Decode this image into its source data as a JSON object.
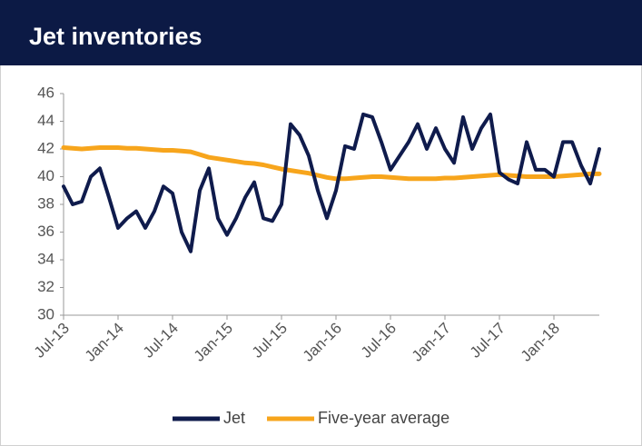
{
  "chart_data": {
    "type": "line",
    "title": "Jet inventories",
    "categories": [
      "Jul-13",
      null,
      null,
      null,
      null,
      null,
      "Jan-14",
      null,
      null,
      null,
      null,
      null,
      "Jul-14",
      null,
      null,
      null,
      null,
      null,
      "Jan-15",
      null,
      null,
      null,
      null,
      null,
      "Jul-15",
      null,
      null,
      null,
      null,
      null,
      "Jan-16",
      null,
      null,
      null,
      null,
      null,
      "Jul-16",
      null,
      null,
      null,
      null,
      null,
      "Jan-17",
      null,
      null,
      null,
      null,
      null,
      "Jul-17",
      null,
      null,
      null,
      null,
      null,
      "Jan-18",
      null,
      null,
      null,
      null,
      null
    ],
    "series": [
      {
        "name": "Jet",
        "color": "#0f1b4c",
        "values": [
          39.3,
          38,
          38.2,
          40,
          40.6,
          38.5,
          36.3,
          37,
          37.5,
          36.3,
          37.5,
          39.3,
          38.8,
          36,
          34.6,
          39,
          40.6,
          37,
          35.8,
          37,
          38.5,
          39.6,
          37,
          36.8,
          38,
          43.8,
          43,
          41.5,
          39,
          37,
          39,
          42.2,
          42,
          44.5,
          44.3,
          42.5,
          40.5,
          41.5,
          42.5,
          43.8,
          42,
          43.5,
          42,
          41,
          44.3,
          42,
          43.5,
          44.5,
          40.3,
          39.8,
          39.5,
          42.5,
          40.5,
          40.5,
          40,
          42.5,
          42.5,
          40.8,
          39.5,
          42
        ]
      },
      {
        "name": "Five-year average",
        "color": "#f7a51c",
        "values": [
          42.1,
          42.05,
          42.0,
          42.05,
          42.1,
          42.1,
          42.1,
          42.05,
          42.05,
          42.0,
          41.95,
          41.9,
          41.9,
          41.85,
          41.8,
          41.6,
          41.4,
          41.3,
          41.2,
          41.1,
          41.0,
          40.95,
          40.85,
          40.7,
          40.55,
          40.45,
          40.35,
          40.25,
          40.1,
          39.95,
          39.85,
          39.85,
          39.9,
          39.95,
          40.0,
          40.0,
          39.95,
          39.9,
          39.85,
          39.85,
          39.85,
          39.85,
          39.9,
          39.9,
          39.95,
          40.0,
          40.05,
          40.1,
          40.15,
          40.1,
          40.05,
          40.0,
          40.0,
          40.0,
          40.0,
          40.05,
          40.1,
          40.15,
          40.2,
          40.2
        ]
      }
    ],
    "ylim": [
      30,
      46
    ],
    "yticks": [
      30,
      32,
      34,
      36,
      38,
      40,
      42,
      44,
      46
    ],
    "grid": false,
    "legend": "bottom"
  }
}
